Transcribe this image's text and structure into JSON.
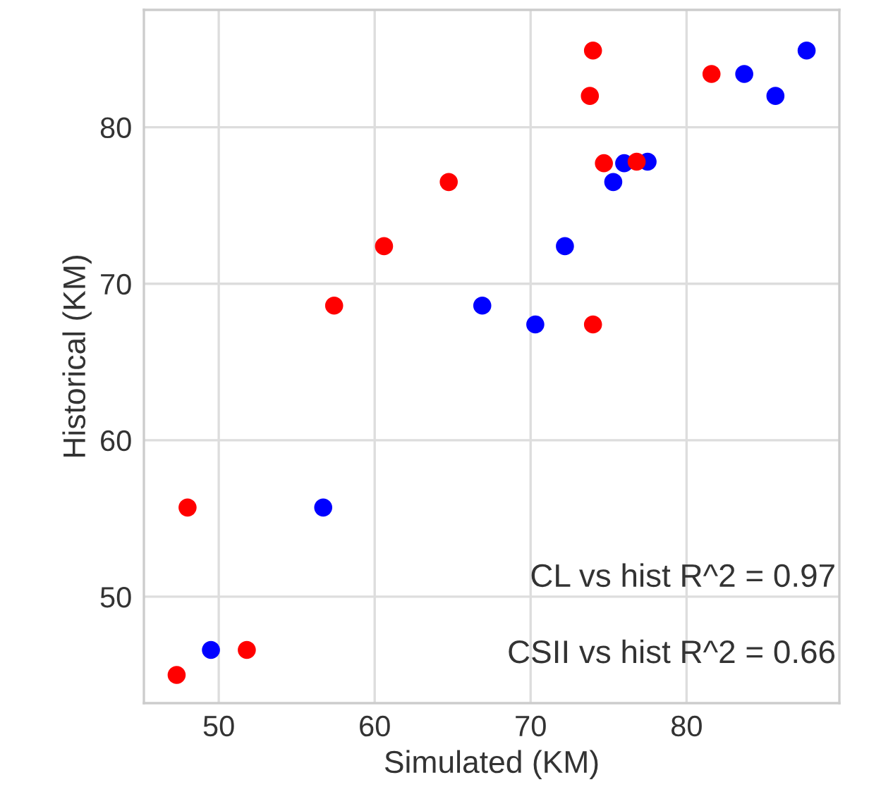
{
  "chart_data": {
    "type": "scatter",
    "xlabel": "Simulated (KM)",
    "ylabel": "Historical (KM)",
    "xlim": [
      45.2,
      89.8
    ],
    "ylim": [
      43.2,
      87.5
    ],
    "xticks": [
      50,
      60,
      70,
      80
    ],
    "yticks": [
      50,
      60,
      70,
      80
    ],
    "grid": true,
    "marker": "circle",
    "series": [
      {
        "color": "#0000ff",
        "x": [
          87.7,
          83.7,
          85.7,
          76.0,
          77.5,
          75.3,
          72.2,
          66.9,
          70.3,
          56.7,
          49.5
        ],
        "values": [
          84.9,
          83.4,
          82.0,
          77.7,
          77.8,
          76.5,
          72.4,
          68.6,
          67.4,
          55.7,
          46.6
        ]
      },
      {
        "color": "#ff0000",
        "x": [
          64.75,
          60.6,
          57.4,
          74.0,
          73.8,
          81.6,
          74.7,
          76.8,
          74.0,
          48.0,
          51.8,
          47.3
        ],
        "values": [
          76.5,
          72.4,
          68.6,
          84.9,
          82.0,
          83.4,
          77.7,
          77.8,
          67.4,
          55.7,
          46.6,
          45.0
        ]
      }
    ],
    "annotations": [
      "CL vs hist R^2 = 0.97",
      "CSII vs hist R^2 = 0.66"
    ]
  }
}
